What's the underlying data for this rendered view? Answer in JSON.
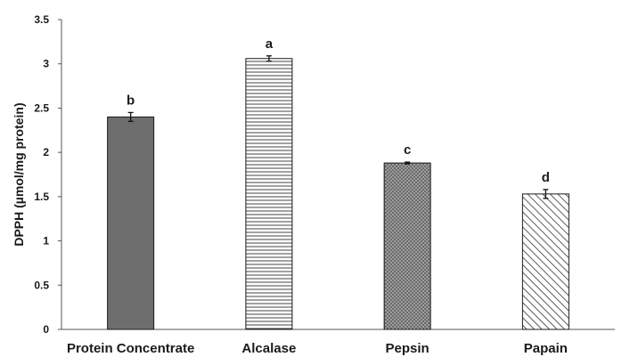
{
  "chart_data": {
    "type": "bar",
    "title": "",
    "xlabel": "",
    "ylabel": "DPPH (µmol/mg protein)",
    "ylim": [
      0,
      3.5
    ],
    "yticks": [
      "0",
      "0.5",
      "1",
      "1.5",
      "2",
      "2.5",
      "3",
      "3.5"
    ],
    "grid": false,
    "categories": [
      "Protein Concentrate",
      "Alcalase",
      "Pepsin",
      "Papain"
    ],
    "values": [
      2.4,
      3.06,
      1.88,
      1.53
    ],
    "errors": [
      0.05,
      0.03,
      0.01,
      0.05
    ],
    "significance_letters": [
      "b",
      "a",
      "c",
      "d"
    ],
    "bar_fills": [
      "solid-dark-gray",
      "horizontal-lines",
      "dotted",
      "diagonal-lines"
    ],
    "colors": {
      "bar_dark": "#6e6e6e",
      "outline": "#1a1a1a",
      "axis": "#555555"
    }
  }
}
